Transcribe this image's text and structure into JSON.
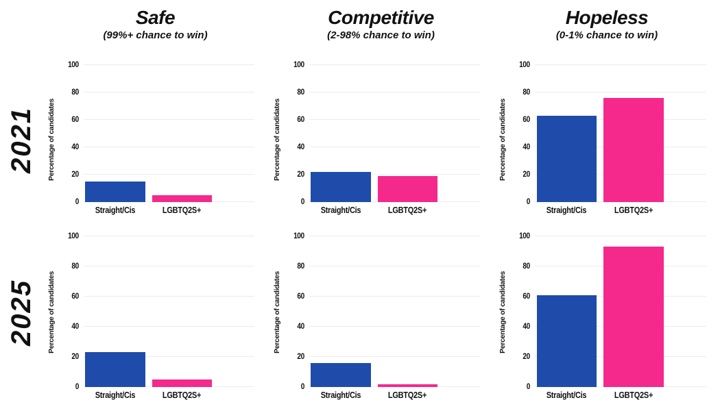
{
  "figure": {
    "background": "#ffffff",
    "grid_color": "#ececec",
    "text_color": "#111111"
  },
  "columns": [
    {
      "title": "Safe",
      "subtitle": "(99%+ chance to win)"
    },
    {
      "title": "Competitive",
      "subtitle": "(2-98% chance to win)"
    },
    {
      "title": "Hopeless",
      "subtitle": "(0-1% chance to win)"
    }
  ],
  "rows": [
    {
      "label": "2021"
    },
    {
      "label": "2025"
    }
  ],
  "series_colors": {
    "Straight/Cis": "#1f4cab",
    "LGBTQ2S+": "#f5288c"
  },
  "chart_data": [
    {
      "type": "bar",
      "row": "2021",
      "column": "Safe",
      "categories": [
        "Straight/Cis",
        "LGBTQ2S+"
      ],
      "values": [
        15,
        5
      ],
      "bar_colors": [
        "#1f4cab",
        "#f5288c"
      ],
      "xlabel": "",
      "ylabel": "Percentage of candidates",
      "ylim": [
        0,
        100
      ],
      "yticks": [
        0,
        20,
        40,
        60,
        80,
        100
      ],
      "grid": true,
      "legend": false
    },
    {
      "type": "bar",
      "row": "2021",
      "column": "Competitive",
      "categories": [
        "Straight/Cis",
        "LGBTQ2S+"
      ],
      "values": [
        22,
        19
      ],
      "bar_colors": [
        "#1f4cab",
        "#f5288c"
      ],
      "xlabel": "",
      "ylabel": "Percentage of candidates",
      "ylim": [
        0,
        100
      ],
      "yticks": [
        0,
        20,
        40,
        60,
        80,
        100
      ],
      "grid": true,
      "legend": false
    },
    {
      "type": "bar",
      "row": "2021",
      "column": "Hopeless",
      "categories": [
        "Straight/Cis",
        "LGBTQ2S+"
      ],
      "values": [
        63,
        76
      ],
      "bar_colors": [
        "#1f4cab",
        "#f5288c"
      ],
      "xlabel": "",
      "ylabel": "Percentage of candidates",
      "ylim": [
        0,
        100
      ],
      "yticks": [
        0,
        20,
        40,
        60,
        80,
        100
      ],
      "grid": true,
      "legend": false
    },
    {
      "type": "bar",
      "row": "2025",
      "column": "Safe",
      "categories": [
        "Straight/Cis",
        "LGBTQ2S+"
      ],
      "values": [
        23,
        5
      ],
      "bar_colors": [
        "#1f4cab",
        "#f5288c"
      ],
      "xlabel": "",
      "ylabel": "Percentage of candidates",
      "ylim": [
        0,
        100
      ],
      "yticks": [
        0,
        20,
        40,
        60,
        80,
        100
      ],
      "grid": true,
      "legend": false
    },
    {
      "type": "bar",
      "row": "2025",
      "column": "Competitive",
      "categories": [
        "Straight/Cis",
        "LGBTQ2S+"
      ],
      "values": [
        16,
        2
      ],
      "bar_colors": [
        "#1f4cab",
        "#f5288c"
      ],
      "xlabel": "",
      "ylabel": "Percentage of candidates",
      "ylim": [
        0,
        100
      ],
      "yticks": [
        0,
        20,
        40,
        60,
        80,
        100
      ],
      "grid": true,
      "legend": false
    },
    {
      "type": "bar",
      "row": "2025",
      "column": "Hopeless",
      "categories": [
        "Straight/Cis",
        "LGBTQ2S+"
      ],
      "values": [
        61,
        93
      ],
      "bar_colors": [
        "#1f4cab",
        "#f5288c"
      ],
      "xlabel": "",
      "ylabel": "Percentage of candidates",
      "ylim": [
        0,
        100
      ],
      "yticks": [
        0,
        20,
        40,
        60,
        80,
        100
      ],
      "grid": true,
      "legend": false
    }
  ]
}
